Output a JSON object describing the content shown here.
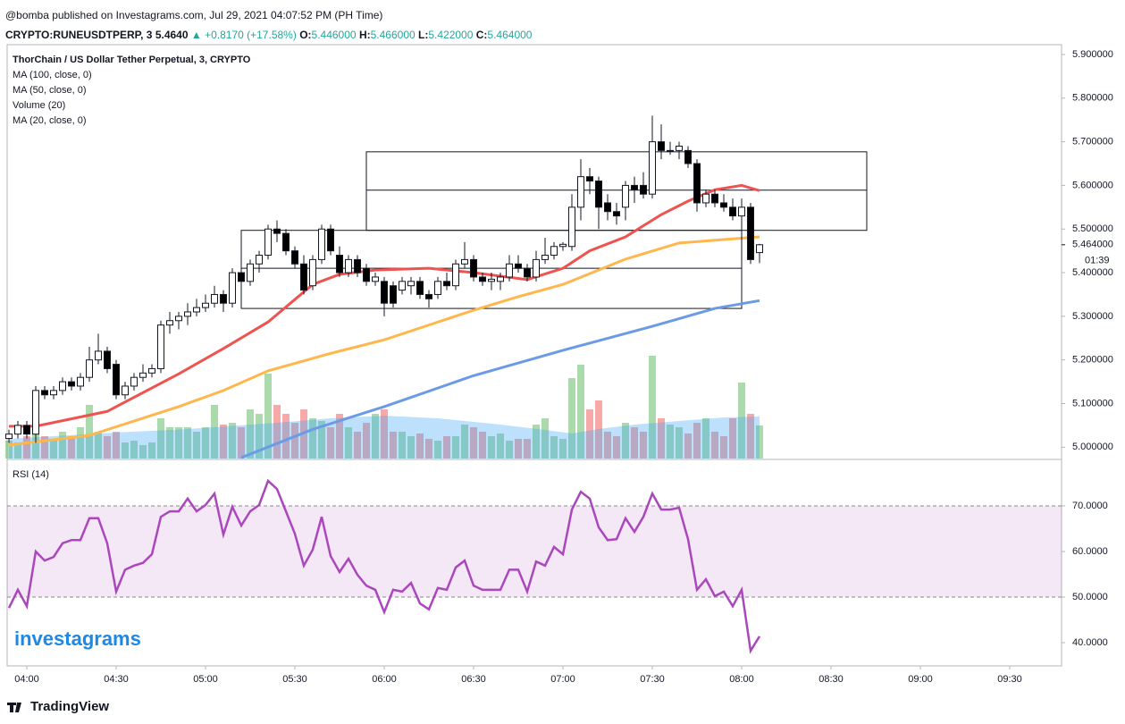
{
  "header": {
    "publisher": "@bomba published on Investagrams.com, Jul 29, 2021 04:07:52 PM (PH Time)",
    "symbol": "CRYPTO:RUNEUSDTPERP, 3",
    "last": "5.4640",
    "change": "▲ +0.8170 (+17.58%)",
    "ohlc": [
      {
        "label": "O:",
        "value": "5.446000"
      },
      {
        "label": "H:",
        "value": "5.466000"
      },
      {
        "label": "L:",
        "value": "5.422000"
      },
      {
        "label": "C:",
        "value": "5.464000"
      }
    ]
  },
  "legend": [
    "ThorChain / US Dollar Tether Perpetual, 3, CRYPTO",
    "MA (100, close, 0)",
    "MA (50, close, 0)",
    "Volume (20)",
    "MA (20, close, 0)"
  ],
  "logo": "investagrams",
  "footer": "TradingView",
  "chart_data": [
    {
      "type": "candlestick",
      "xlim": [
        -0.2,
        117.8
      ],
      "ylim": [
        4.974,
        5.9225
      ],
      "xticks": [
        {
          "value": 2,
          "label": "04:00"
        },
        {
          "value": 12,
          "label": "04:30"
        },
        {
          "value": 22,
          "label": "05:00"
        },
        {
          "value": 32,
          "label": "05:30"
        },
        {
          "value": 42,
          "label": "06:00"
        },
        {
          "value": 52,
          "label": "06:30"
        },
        {
          "value": 62,
          "label": "07:00"
        },
        {
          "value": 72,
          "label": "07:30"
        },
        {
          "value": 82,
          "label": "08:00"
        },
        {
          "value": 92,
          "label": "08:30"
        },
        {
          "value": 102,
          "label": "09:00"
        },
        {
          "value": 112,
          "label": "09:30"
        }
      ],
      "yticks": [
        {
          "value": 5.0,
          "label": "5.000000"
        },
        {
          "value": 5.1,
          "label": "5.100000"
        },
        {
          "value": 5.2,
          "label": "5.200000"
        },
        {
          "value": 5.3,
          "label": "5.300000"
        },
        {
          "value": 5.4,
          "label": "5.400000"
        },
        {
          "value": 5.5,
          "label": "5.500000"
        },
        {
          "value": 5.6,
          "label": "5.600000"
        },
        {
          "value": 5.7,
          "label": "5.700000"
        },
        {
          "value": 5.8,
          "label": "5.800000"
        },
        {
          "value": 5.9,
          "label": "5.900000"
        }
      ],
      "last_price": {
        "value": 5.464,
        "label": "5.464000",
        "countdown": "01:39"
      },
      "up_color": "#ffffff",
      "down_color": "#000000",
      "candles": [
        [
          5.02,
          5.04,
          5.01,
          5.03
        ],
        [
          5.03,
          5.06,
          5.02,
          5.05
        ],
        [
          5.05,
          5.06,
          5.02,
          5.03
        ],
        [
          5.03,
          5.14,
          5.01,
          5.13
        ],
        [
          5.13,
          5.14,
          5.11,
          5.12
        ],
        [
          5.12,
          5.14,
          5.11,
          5.13
        ],
        [
          5.13,
          5.16,
          5.12,
          5.15
        ],
        [
          5.15,
          5.16,
          5.13,
          5.14
        ],
        [
          5.14,
          5.17,
          5.13,
          5.16
        ],
        [
          5.16,
          5.23,
          5.15,
          5.2
        ],
        [
          5.2,
          5.26,
          5.19,
          5.22
        ],
        [
          5.22,
          5.23,
          5.17,
          5.18
        ],
        [
          5.19,
          5.2,
          5.11,
          5.12
        ],
        [
          5.12,
          5.15,
          5.11,
          5.14
        ],
        [
          5.14,
          5.17,
          5.13,
          5.16
        ],
        [
          5.16,
          5.19,
          5.15,
          5.17
        ],
        [
          5.17,
          5.19,
          5.16,
          5.18
        ],
        [
          5.18,
          5.29,
          5.17,
          5.28
        ],
        [
          5.28,
          5.31,
          5.26,
          5.29
        ],
        [
          5.29,
          5.31,
          5.27,
          5.3
        ],
        [
          5.3,
          5.33,
          5.28,
          5.31
        ],
        [
          5.31,
          5.34,
          5.3,
          5.32
        ],
        [
          5.32,
          5.35,
          5.31,
          5.33
        ],
        [
          5.33,
          5.37,
          5.32,
          5.35
        ],
        [
          5.35,
          5.36,
          5.31,
          5.33
        ],
        [
          5.33,
          5.41,
          5.32,
          5.4
        ],
        [
          5.4,
          5.41,
          5.36,
          5.38
        ],
        [
          5.38,
          5.43,
          5.37,
          5.42
        ],
        [
          5.42,
          5.45,
          5.4,
          5.44
        ],
        [
          5.44,
          5.51,
          5.43,
          5.5
        ],
        [
          5.5,
          5.52,
          5.47,
          5.49
        ],
        [
          5.49,
          5.5,
          5.44,
          5.45
        ],
        [
          5.45,
          5.46,
          5.41,
          5.42
        ],
        [
          5.42,
          5.44,
          5.35,
          5.36
        ],
        [
          5.37,
          5.44,
          5.36,
          5.43
        ],
        [
          5.43,
          5.51,
          5.42,
          5.5
        ],
        [
          5.5,
          5.51,
          5.44,
          5.45
        ],
        [
          5.44,
          5.46,
          5.39,
          5.4
        ],
        [
          5.4,
          5.44,
          5.39,
          5.43
        ],
        [
          5.43,
          5.44,
          5.39,
          5.4
        ],
        [
          5.41,
          5.42,
          5.37,
          5.38
        ],
        [
          5.38,
          5.4,
          5.37,
          5.39
        ],
        [
          5.38,
          5.39,
          5.3,
          5.33
        ],
        [
          5.37,
          5.38,
          5.32,
          5.33
        ],
        [
          5.36,
          5.39,
          5.35,
          5.38
        ],
        [
          5.37,
          5.39,
          5.35,
          5.38
        ],
        [
          5.38,
          5.39,
          5.34,
          5.35
        ],
        [
          5.35,
          5.36,
          5.32,
          5.34
        ],
        [
          5.35,
          5.39,
          5.34,
          5.38
        ],
        [
          5.38,
          5.4,
          5.36,
          5.37
        ],
        [
          5.37,
          5.43,
          5.36,
          5.42
        ],
        [
          5.42,
          5.47,
          5.41,
          5.43
        ],
        [
          5.43,
          5.44,
          5.38,
          5.39
        ],
        [
          5.39,
          5.4,
          5.37,
          5.38
        ],
        [
          5.38,
          5.4,
          5.36,
          5.385
        ],
        [
          5.38,
          5.4,
          5.36,
          5.39
        ],
        [
          5.39,
          5.44,
          5.38,
          5.42
        ],
        [
          5.42,
          5.44,
          5.4,
          5.41
        ],
        [
          5.41,
          5.42,
          5.38,
          5.39
        ],
        [
          5.39,
          5.45,
          5.38,
          5.43
        ],
        [
          5.43,
          5.48,
          5.42,
          5.44
        ],
        [
          5.44,
          5.47,
          5.43,
          5.46
        ],
        [
          5.46,
          5.47,
          5.45,
          5.465
        ],
        [
          5.46,
          5.58,
          5.45,
          5.55
        ],
        [
          5.55,
          5.66,
          5.52,
          5.62
        ],
        [
          5.62,
          5.64,
          5.58,
          5.61
        ],
        [
          5.61,
          5.62,
          5.5,
          5.55
        ],
        [
          5.56,
          5.58,
          5.52,
          5.54
        ],
        [
          5.54,
          5.56,
          5.51,
          5.53
        ],
        [
          5.55,
          5.61,
          5.52,
          5.6
        ],
        [
          5.6,
          5.62,
          5.56,
          5.59
        ],
        [
          5.6,
          5.63,
          5.57,
          5.58
        ],
        [
          5.58,
          5.76,
          5.57,
          5.7
        ],
        [
          5.7,
          5.74,
          5.66,
          5.68
        ],
        [
          5.68,
          5.7,
          5.67,
          5.68
        ],
        [
          5.68,
          5.7,
          5.66,
          5.69
        ],
        [
          5.68,
          5.69,
          5.64,
          5.65
        ],
        [
          5.65,
          5.66,
          5.54,
          5.56
        ],
        [
          5.56,
          5.59,
          5.55,
          5.58
        ],
        [
          5.58,
          5.59,
          5.55,
          5.56
        ],
        [
          5.56,
          5.58,
          5.54,
          5.55
        ],
        [
          5.55,
          5.57,
          5.52,
          5.53
        ],
        [
          5.53,
          5.57,
          5.42,
          5.55
        ],
        [
          5.55,
          5.56,
          5.42,
          5.43
        ],
        [
          5.446,
          5.466,
          5.422,
          5.464
        ]
      ],
      "series": [
        {
          "name": "MA (100, close, 0)",
          "color": "#6b9be6",
          "x": [
            26,
            34,
            42,
            52,
            62,
            72,
            79,
            84
          ],
          "values": [
            4.976,
            5.041,
            5.093,
            5.164,
            5.222,
            5.277,
            5.318,
            5.336
          ]
        },
        {
          "name": "MA (50, close, 0)",
          "color": "#ffb74d",
          "x": [
            0,
            9,
            19,
            24,
            29,
            36,
            42,
            47,
            52,
            57,
            62,
            69,
            75,
            80,
            84
          ],
          "values": [
            5.005,
            5.027,
            5.093,
            5.13,
            5.175,
            5.215,
            5.246,
            5.28,
            5.314,
            5.345,
            5.373,
            5.431,
            5.468,
            5.476,
            5.482
          ]
        },
        {
          "name": "MA (20, close, 0)",
          "color": "#ef5350",
          "x": [
            0,
            3,
            11,
            19,
            24,
            29,
            34,
            37,
            41,
            47,
            52,
            58,
            62,
            65,
            69,
            73,
            76,
            79,
            82,
            84
          ],
          "values": [
            5.048,
            5.048,
            5.082,
            5.168,
            5.226,
            5.287,
            5.373,
            5.396,
            5.406,
            5.41,
            5.4,
            5.384,
            5.41,
            5.45,
            5.482,
            5.533,
            5.564,
            5.59,
            5.6,
            5.588
          ]
        }
      ],
      "boxes": [
        {
          "x": [
            26,
            82
          ],
          "y": [
            5.318,
            5.497
          ],
          "mid": 5.41
        },
        {
          "x": [
            40,
            96
          ],
          "y": [
            5.497,
            5.677
          ],
          "mid": 5.589
        }
      ],
      "volume": {
        "up_color": "rgba(102,187,106,0.55)",
        "down_color": "rgba(239,83,80,0.5)",
        "ma_color": "rgba(66,165,245,0.35)",
        "values": [
          20,
          18,
          25,
          30,
          25,
          22,
          30,
          25,
          35,
          60,
          30,
          25,
          30,
          18,
          20,
          15,
          18,
          45,
          35,
          35,
          35,
          30,
          35,
          60,
          38,
          40,
          35,
          55,
          50,
          95,
          60,
          50,
          40,
          55,
          45,
          42,
          35,
          50,
          35,
          30,
          40,
          50,
          55,
          30,
          30,
          25,
          28,
          22,
          20,
          25,
          25,
          38,
          35,
          30,
          25,
          28,
          20,
          22,
          22,
          38,
          45,
          25,
          22,
          90,
          105,
          55,
          65,
          30,
          25,
          40,
          35,
          30,
          115,
          45,
          38,
          35,
          28,
          40,
          45,
          30,
          25,
          45,
          85,
          50,
          37
        ],
        "ma_x": [
          0,
          10,
          20,
          30,
          36,
          42,
          48,
          55,
          60,
          63,
          66,
          70,
          75,
          80,
          84
        ],
        "ma_values": [
          22,
          28,
          33,
          40,
          45,
          48,
          45,
          38,
          32,
          28,
          33,
          38,
          42,
          46,
          47
        ]
      }
    },
    {
      "type": "line",
      "title": "RSI (14)",
      "color": "#ab47bc",
      "ylim": [
        34.9,
        80
      ],
      "band": [
        50,
        70
      ],
      "band_color": "rgba(171,71,188,0.13)",
      "yticks": [
        {
          "value": 40,
          "label": "40.0000"
        },
        {
          "value": 50,
          "label": "50.0000"
        },
        {
          "value": 60,
          "label": "60.0000"
        },
        {
          "value": 70,
          "label": "70.0000"
        }
      ],
      "values": [
        47.6,
        51.6,
        48,
        60,
        58,
        58.8,
        61.8,
        62.5,
        62.5,
        67.3,
        67.3,
        61.8,
        51.2,
        56,
        56.9,
        57.5,
        59.4,
        67.6,
        68.8,
        68.8,
        71.6,
        68.8,
        70.2,
        72.7,
        63.7,
        69.8,
        65.7,
        68.8,
        70.2,
        75.5,
        73.7,
        68.8,
        63.9,
        56.9,
        60.4,
        67.6,
        59,
        55.5,
        58.4,
        54.9,
        52.5,
        51.6,
        46.7,
        51.6,
        51.2,
        53.1,
        48.6,
        47.3,
        52,
        51.6,
        56.5,
        58,
        52.5,
        51.6,
        51.6,
        51.6,
        56,
        56,
        51.2,
        57.8,
        56.9,
        61,
        59.4,
        69.2,
        73.1,
        71.6,
        65.3,
        62.5,
        62.7,
        67.3,
        64.3,
        67.6,
        72.7,
        69.2,
        69.2,
        69.6,
        62.7,
        51.6,
        53.9,
        50.2,
        51.2,
        48,
        51.6,
        38.2,
        41.4
      ]
    }
  ]
}
